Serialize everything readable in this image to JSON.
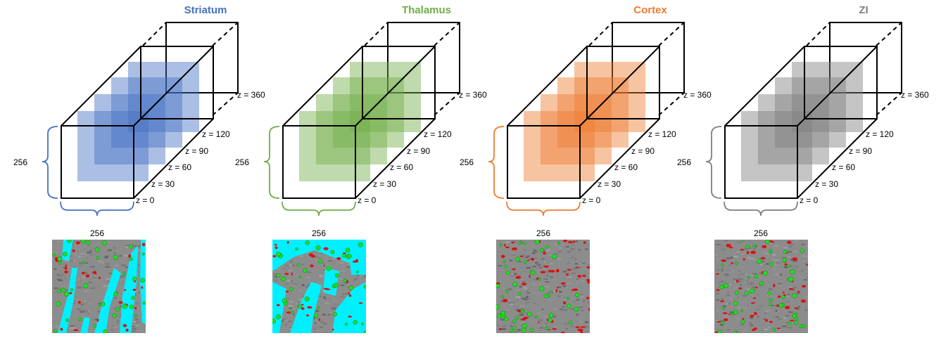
{
  "panels": [
    {
      "title": "Striatum",
      "color": "#4472c4",
      "dim_vertical": "256",
      "dim_horizontal": "256",
      "z_labels": [
        "z = 0",
        "z = 30",
        "z = 60",
        "z = 90",
        "z = 120",
        "z = 360"
      ],
      "thumbnail_background": "cyan tissue streaks",
      "thumbnail_overlay": "cyan"
    },
    {
      "title": "Thalamus",
      "color": "#70ad47",
      "dim_vertical": "256",
      "dim_horizontal": "256",
      "z_labels": [
        "z = 0",
        "z = 30",
        "z = 60",
        "z = 90",
        "z = 120",
        "z = 360"
      ],
      "thumbnail_background": "cyan tissue network",
      "thumbnail_overlay": "cyan"
    },
    {
      "title": "Cortex",
      "color": "#ed7d31",
      "dim_vertical": "256",
      "dim_horizontal": "256",
      "z_labels": [
        "z = 0",
        "z = 30",
        "z = 60",
        "z = 90",
        "z = 120",
        "z = 360"
      ],
      "thumbnail_background": "grey tissue",
      "thumbnail_overlay": "none"
    },
    {
      "title": "ZI",
      "color": "#7f7f7f",
      "dim_vertical": "256",
      "dim_horizontal": "256",
      "z_labels": [
        "z = 0",
        "z = 30",
        "z = 60",
        "z = 90",
        "z = 120",
        "z = 360"
      ],
      "thumbnail_background": "grey tissue",
      "thumbnail_overlay": "none"
    }
  ],
  "palette": {
    "outline": "#000000",
    "tissue": "#8c8c8c",
    "cell_green": "#22dd22",
    "vessel_red": "#dd1111",
    "overlay_cyan": "#00f0ff"
  }
}
